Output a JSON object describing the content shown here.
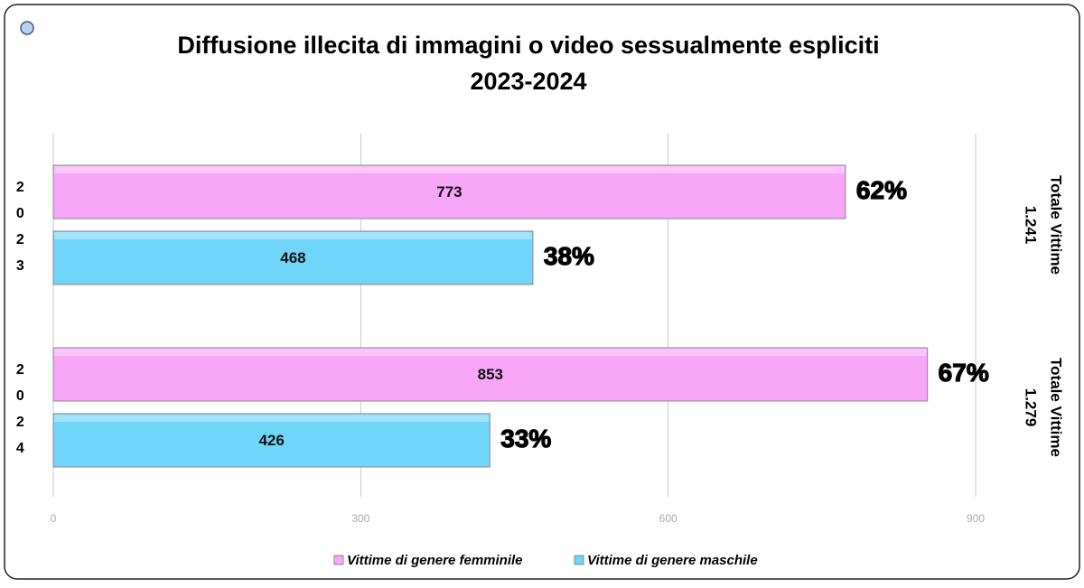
{
  "chart_data": {
    "type": "bar",
    "orientation": "horizontal",
    "title": "Diffusione illecita di immagini o video sessualmente espliciti",
    "subtitle": "2023-2024",
    "categories": [
      "2023",
      "2024"
    ],
    "series": [
      {
        "name": "Vittime di genere femminile",
        "color": "#f7a6f8",
        "values": [
          773,
          853
        ],
        "shares": [
          "62%",
          "67%"
        ]
      },
      {
        "name": "Vittime di genere maschile",
        "color": "#6fd6fa",
        "values": [
          468,
          426
        ],
        "shares": [
          "38%",
          "33%"
        ]
      }
    ],
    "group_totals": [
      [
        "Totale Vittime",
        "1.241"
      ],
      [
        "Totale Vittime",
        "1.279"
      ]
    ],
    "xlim": [
      0,
      900
    ],
    "xticks": [
      0,
      300,
      600,
      900
    ],
    "grid": true,
    "legend": "bottom"
  }
}
